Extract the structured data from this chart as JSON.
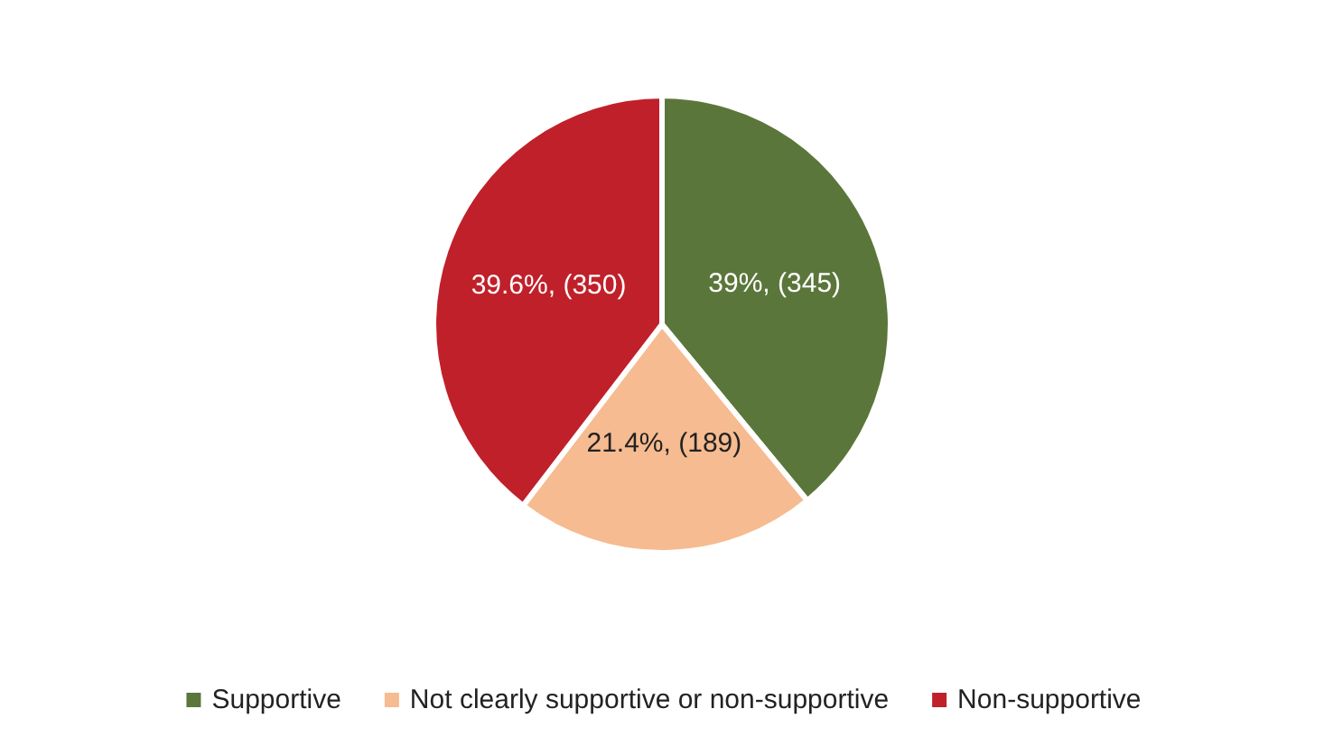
{
  "chart_data": {
    "type": "pie",
    "categories": [
      "Supportive",
      "Not clearly supportive or non-supportive",
      "Non-supportive"
    ],
    "values": [
      345,
      189,
      350
    ],
    "colors": [
      "#5b763a",
      "#f6bb90",
      "#c0202a"
    ],
    "value_labels": [
      "39%, (345)",
      "21.4%, (189)",
      "39.6%, (350)"
    ],
    "legend": "bottom"
  }
}
